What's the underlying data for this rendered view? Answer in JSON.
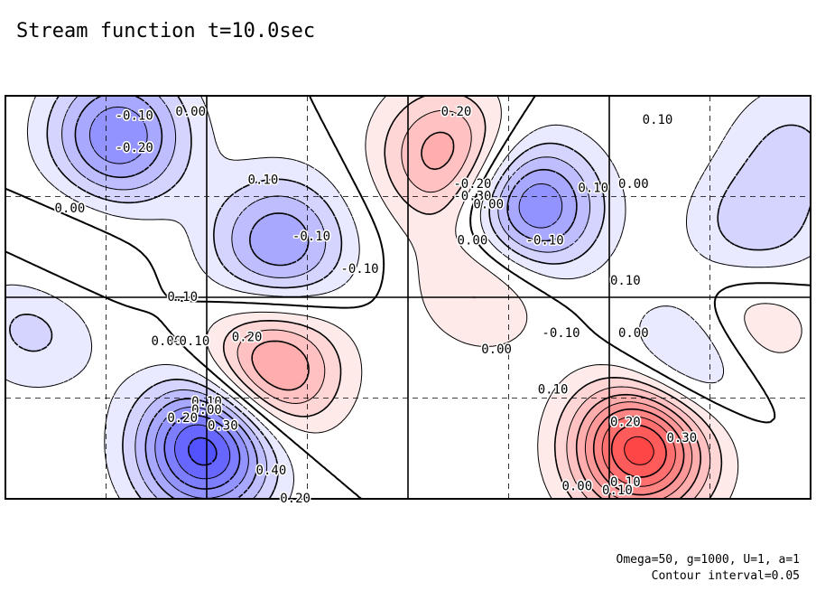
{
  "title": "Stream function t=10.0sec",
  "footer": {
    "params": "Omega=50, g=1000, U=1, a=1",
    "interval": "Contour interval=0.05"
  },
  "chart_data": {
    "type": "heatmap",
    "title": "Stream function t=10.0sec",
    "subtitle": "Omega=50, g=1000, U=1, a=1",
    "note": "Contour interval=0.05",
    "contour_interval": 0.05,
    "value_range": [
      -0.45,
      0.5
    ],
    "grid": true,
    "grid_major": [
      4,
      2
    ],
    "grid_minor": [
      8,
      4
    ],
    "colors": {
      "negative": "#2b2bff",
      "positive": "#ff2020",
      "zero": "#ffffff",
      "positive_contour_style": "solid",
      "negative_contour_style": "dashed"
    },
    "features": [
      {
        "sign": "negative",
        "peak": -0.3,
        "cx": 0.14,
        "cy": 0.9
      },
      {
        "sign": "positive",
        "peak": 0.25,
        "cx": 0.55,
        "cy": 0.85
      },
      {
        "sign": "negative",
        "peak": -0.35,
        "cx": 0.65,
        "cy": 0.72
      },
      {
        "sign": "negative",
        "peak": -0.25,
        "cx": 0.34,
        "cy": 0.63
      },
      {
        "sign": "positive",
        "peak": 0.1,
        "cx": 0.07,
        "cy": 0.58
      },
      {
        "sign": "positive",
        "peak": 0.15,
        "cx": 0.6,
        "cy": 0.55
      },
      {
        "sign": "negative",
        "peak": -0.15,
        "cx": 0.04,
        "cy": 0.45
      },
      {
        "sign": "positive",
        "peak": 0.3,
        "cx": 0.33,
        "cy": 0.32
      },
      {
        "sign": "negative",
        "peak": -0.45,
        "cx": 0.25,
        "cy": 0.13
      },
      {
        "sign": "positive",
        "peak": 0.5,
        "cx": 0.79,
        "cy": 0.13
      },
      {
        "sign": "negative",
        "peak": -0.2,
        "cx": 0.85,
        "cy": 0.33
      },
      {
        "sign": "positive",
        "peak": 0.15,
        "cx": 0.92,
        "cy": 0.45
      },
      {
        "sign": "negative",
        "peak": -0.15,
        "cx": 0.93,
        "cy": 0.65
      },
      {
        "sign": "negative",
        "peak": -0.1,
        "cx": 0.98,
        "cy": 0.88
      }
    ],
    "contour_labels": [
      {
        "text": "0.20",
        "x": 0.56,
        "y": 0.96
      },
      {
        "text": "-0.10",
        "x": 0.16,
        "y": 0.95
      },
      {
        "text": "0.00",
        "x": 0.23,
        "y": 0.96
      },
      {
        "text": "-0.20",
        "x": 0.16,
        "y": 0.87
      },
      {
        "text": "0.10",
        "x": 0.81,
        "y": 0.94
      },
      {
        "text": "0.00",
        "x": 0.78,
        "y": 0.78
      },
      {
        "text": "0.10",
        "x": 0.32,
        "y": 0.79
      },
      {
        "text": "-0.20",
        "x": 0.58,
        "y": 0.78
      },
      {
        "text": "-0.30",
        "x": 0.58,
        "y": 0.75
      },
      {
        "text": "0.10",
        "x": 0.73,
        "y": 0.77
      },
      {
        "text": "0.00",
        "x": 0.6,
        "y": 0.73
      },
      {
        "text": "0.00",
        "x": 0.08,
        "y": 0.72
      },
      {
        "text": "0.00",
        "x": 0.58,
        "y": 0.64
      },
      {
        "text": "-0.10",
        "x": 0.67,
        "y": 0.64
      },
      {
        "text": "-0.10",
        "x": 0.38,
        "y": 0.65
      },
      {
        "text": "-0.10",
        "x": 0.44,
        "y": 0.57
      },
      {
        "text": "0.10",
        "x": 0.77,
        "y": 0.54
      },
      {
        "text": "0.10",
        "x": 0.22,
        "y": 0.5
      },
      {
        "text": "0.00",
        "x": 0.2,
        "y": 0.39
      },
      {
        "text": "-0.10",
        "x": 0.69,
        "y": 0.41
      },
      {
        "text": "-0.10",
        "x": 0.23,
        "y": 0.39
      },
      {
        "text": "0.00",
        "x": 0.78,
        "y": 0.41
      },
      {
        "text": "0.20",
        "x": 0.3,
        "y": 0.4
      },
      {
        "text": "0.00",
        "x": 0.61,
        "y": 0.37
      },
      {
        "text": "0.10",
        "x": 0.68,
        "y": 0.27
      },
      {
        "text": "0.10",
        "x": 0.25,
        "y": 0.24
      },
      {
        "text": "0.00",
        "x": 0.25,
        "y": 0.22
      },
      {
        "text": "0.20",
        "x": 0.22,
        "y": 0.2
      },
      {
        "text": "0.30",
        "x": 0.27,
        "y": 0.18
      },
      {
        "text": "0.20",
        "x": 0.77,
        "y": 0.19
      },
      {
        "text": "0.30",
        "x": 0.84,
        "y": 0.15
      },
      {
        "text": "0.40",
        "x": 0.33,
        "y": 0.07
      },
      {
        "text": "0.10",
        "x": 0.77,
        "y": 0.04
      },
      {
        "text": "0.00",
        "x": 0.71,
        "y": 0.03
      },
      {
        "text": "0.10",
        "x": 0.76,
        "y": 0.02
      },
      {
        "text": "0.20",
        "x": 0.36,
        "y": 0.0
      }
    ]
  }
}
